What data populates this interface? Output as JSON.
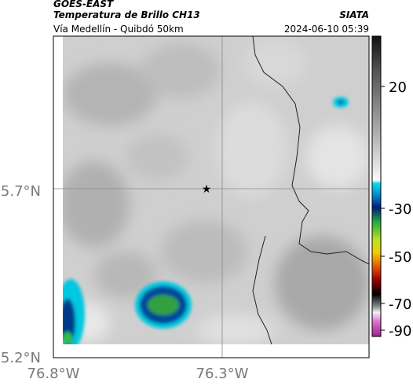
{
  "header": {
    "product": "GOES-EAST",
    "title": "Temperatura de Brillo CH13",
    "source": "SIATA",
    "subtitle": "Vía Medellín - Quibdó 50km",
    "datetime": "2024-06-10 05:39"
  },
  "map": {
    "lat_ticks": [
      "5.7°N",
      "5.2°N"
    ],
    "lon_ticks": [
      "76.8°W",
      "76.3°W"
    ]
  },
  "colorbar": {
    "ticks": [
      20,
      -30,
      -50,
      -70,
      -90
    ]
  }
}
